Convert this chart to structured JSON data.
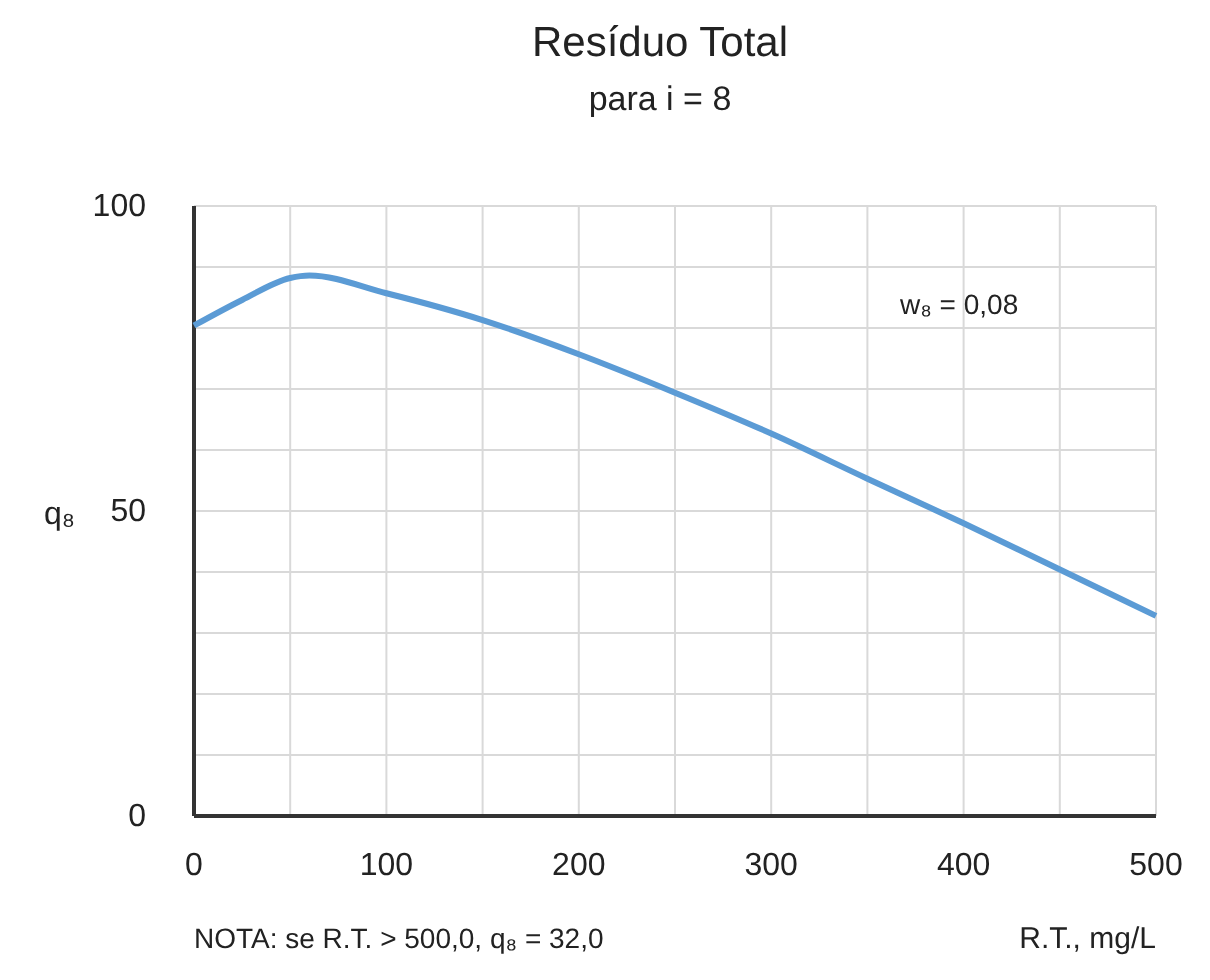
{
  "chart_data": {
    "type": "line",
    "title": "Resíduo Total",
    "subtitle": "para i = 8",
    "ylabel": "q₈",
    "xlabel": "R.T., mg/L",
    "annotations": [
      "w₈ = 0,08",
      "NOTA: se R.T. > 500,0, q₈ = 32,0"
    ],
    "x": [
      0,
      25,
      50,
      60,
      100,
      150,
      200,
      250,
      300,
      350,
      400,
      450,
      500
    ],
    "series": [
      {
        "color": "#5b9bd5",
        "values": [
          80.4,
          84.6,
          88.2,
          88.6,
          85.7,
          81.3,
          75.7,
          69.4,
          62.7,
          55.3,
          48,
          40.4,
          32.8
        ]
      }
    ],
    "xlim": [
      0,
      500
    ],
    "ylim": [
      0,
      100
    ],
    "xticks": [
      0,
      {
        "value": 50,
        "label": null
      },
      100,
      {
        "value": 150,
        "label": null
      },
      200,
      {
        "value": 250,
        "label": null
      },
      300,
      {
        "value": 350,
        "label": null
      },
      400,
      {
        "value": 450,
        "label": null
      },
      500
    ],
    "yticks": [
      0,
      {
        "value": 10,
        "label": null
      },
      {
        "value": 20,
        "label": null
      },
      {
        "value": 30,
        "label": null
      },
      {
        "value": 40,
        "label": null
      },
      50,
      {
        "value": 60,
        "label": null
      },
      {
        "value": 70,
        "label": null
      },
      {
        "value": 80,
        "label": null
      },
      {
        "value": 90,
        "label": null
      },
      100
    ],
    "grid": true,
    "marker": "none",
    "line_style": "solid"
  }
}
